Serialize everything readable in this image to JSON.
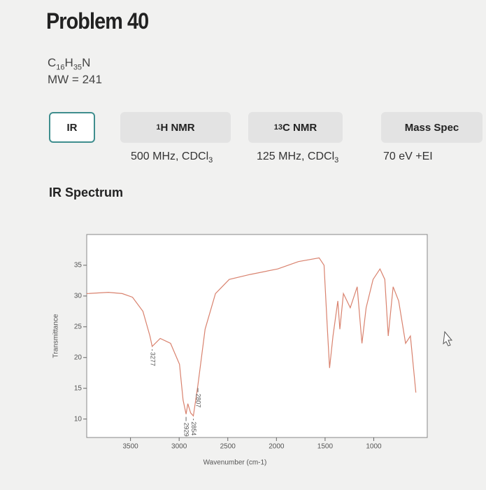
{
  "header": {
    "title": "Problem 40",
    "formula": [
      "C",
      "16",
      "H",
      "35",
      "N"
    ],
    "mw": "MW = 241"
  },
  "tabs": [
    {
      "label": "IR"
    },
    {
      "sup": "1",
      "label": "H NMR",
      "condition": {
        "text": "500 MHz, CDCl",
        "sub": "3"
      }
    },
    {
      "sup": "13",
      "label": "C NMR",
      "condition": {
        "text": "125 MHz, CDCl",
        "sub": "3"
      }
    },
    {
      "label": "Mass Spec",
      "condition": {
        "text": "70 eV +EI"
      }
    }
  ],
  "section_title": "IR Spectrum",
  "chart_data": {
    "type": "line",
    "x_label": "Wavenumber (cm-1)",
    "y_label": "Transmittance",
    "color": "#d9826e",
    "xlim": [
      3950,
      450
    ],
    "xticks": [
      3500,
      3000,
      2500,
      2000,
      1500,
      1000
    ],
    "ylim": [
      7,
      40
    ],
    "yticks": [
      10,
      15,
      20,
      25,
      30,
      35
    ],
    "x": [
      3950,
      3727,
      3585,
      3479,
      3372,
      3300,
      3277,
      3195,
      3088,
      2996,
      2960,
      2929,
      2911,
      2882,
      2854,
      2807,
      2733,
      2627,
      2485,
      2271,
      1987,
      1774,
      1561,
      1511,
      1476,
      1454,
      1419,
      1369,
      1348,
      1312,
      1241,
      1170,
      1121,
      1078,
      1007,
      936,
      886,
      851,
      801,
      744,
      673,
      623,
      567
    ],
    "values": [
      30.4,
      30.6,
      30.4,
      29.8,
      27.5,
      23.5,
      21.8,
      23.1,
      22.3,
      18.9,
      13.1,
      10.8,
      12.5,
      11.0,
      10.5,
      15.5,
      24.6,
      30.4,
      32.7,
      33.5,
      34.4,
      35.6,
      36.2,
      35.0,
      24.6,
      18.3,
      23.5,
      29.2,
      24.6,
      30.4,
      28.1,
      31.5,
      22.3,
      28.1,
      32.7,
      34.4,
      32.7,
      23.5,
      31.5,
      29.2,
      22.3,
      23.5,
      14.3
    ],
    "annotations": [
      3277,
      2929,
      2854,
      2807
    ]
  }
}
